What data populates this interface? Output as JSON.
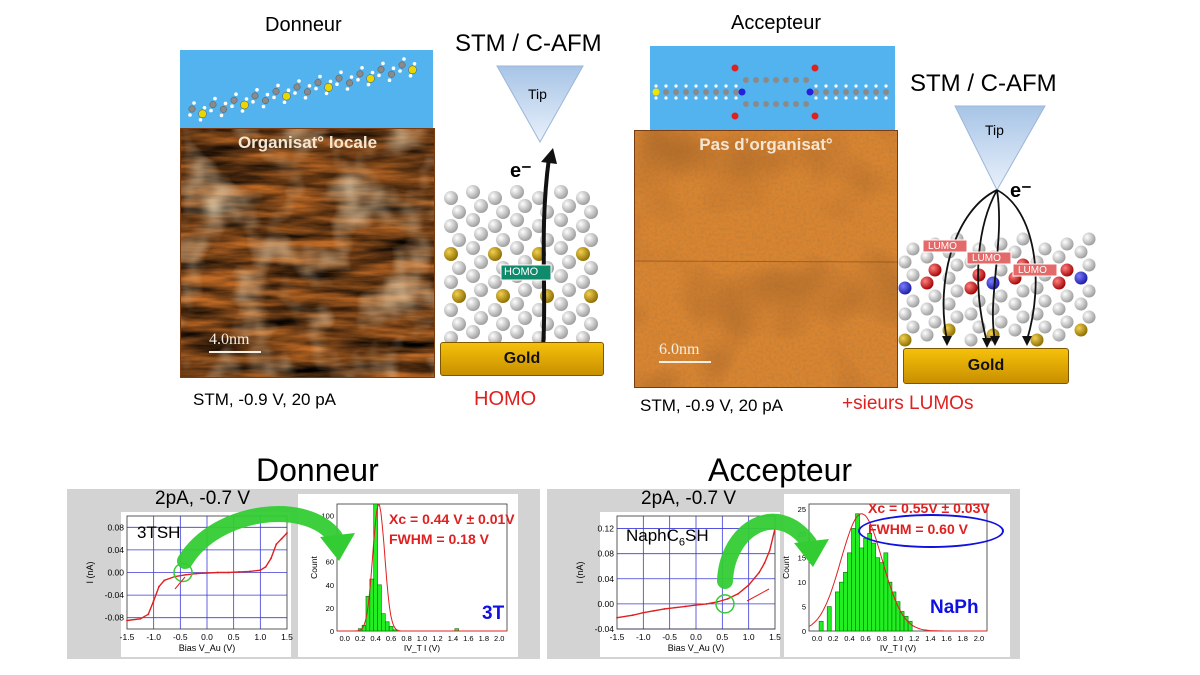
{
  "top": {
    "donor": {
      "title": "Donneur",
      "image_label": "Organisat° locale",
      "scale": "4.0nm",
      "conditions": "STM, -0.9 V, 20 pA",
      "method": "STM / C-AFM",
      "tip": "Tip",
      "electron": "e⁻",
      "orbital": "HOMO",
      "substrate": "Gold",
      "caption": "HOMO"
    },
    "acceptor": {
      "title": "Accepteur",
      "image_label": "Pas d’organisat°",
      "scale": "6.0nm",
      "conditions": "STM, -0.9 V, 20 pA",
      "method": "STM / C-AFM",
      "tip": "Tip",
      "electron": "e⁻",
      "orbital": "LUMO",
      "substrate": "Gold",
      "caption": "+sieurs LUMOs"
    }
  },
  "bottom": {
    "donor": {
      "heading": "Donneur",
      "conditions": "2pA, -0.7 V",
      "molecule": "3TSH",
      "xc": "Xc = 0.44 V ± 0.01V",
      "fwhm": "FWHM = 0.18 V",
      "tag": "3T"
    },
    "acceptor": {
      "heading": "Accepteur",
      "conditions": "2pA, -0.7 V",
      "molecule": "NaphC",
      "molecule_sub": "6",
      "molecule_suffix": "SH",
      "xc": "Xc = 0.55V ± 0.03V",
      "fwhm": "FWHM = 0.60 V",
      "tag": "NaPh"
    }
  },
  "colors": {
    "red": "#e02020",
    "blue": "#1010e0",
    "green_arrow": "#33cc33",
    "histogram": "#22ee22",
    "gold": "#e8b000",
    "sky": "#53b3ee"
  },
  "chart_data": [
    {
      "type": "line",
      "name": "donor-iv",
      "xlabel": "Bias V_Au (V)",
      "ylabel": "I (nA)",
      "xlim": [
        -1.5,
        1.5
      ],
      "ylim": [
        -0.1,
        0.1
      ],
      "xticks": [
        "-1.5",
        "-1.0",
        "-0.5",
        "0.0",
        "0.5",
        "1.0",
        "1.5"
      ],
      "yticks": [
        "0.08",
        "0.04",
        "0.00",
        "-0.04",
        "-0.08"
      ],
      "x": [
        -1.5,
        -1.25,
        -1.1,
        -1.0,
        -0.9,
        -0.8,
        -0.6,
        -0.4,
        -0.2,
        0.0,
        0.2,
        0.4,
        0.6,
        0.8,
        1.0,
        1.1,
        1.2,
        1.3,
        1.4,
        1.5
      ],
      "y": [
        -0.085,
        -0.082,
        -0.074,
        -0.05,
        -0.025,
        -0.014,
        -0.007,
        -0.004,
        -0.002,
        -0.001,
        0.0,
        0.0,
        0.001,
        0.002,
        0.004,
        0.01,
        0.025,
        0.05,
        0.06,
        0.07
      ]
    },
    {
      "type": "bar",
      "name": "donor-histogram",
      "xlabel": "IV_T I (V)",
      "ylabel": "Count",
      "xlim": [
        -0.1,
        2.1
      ],
      "ylim": [
        0,
        110
      ],
      "xticks": [
        "0.0",
        "0.2",
        "0.4",
        "0.6",
        "0.8",
        "1.0",
        "1.2",
        "1.4",
        "1.6",
        "1.8",
        "2.0"
      ],
      "yticks": [
        "0",
        "20",
        "40",
        "60",
        "80",
        "100"
      ],
      "bin_centers": [
        0.2,
        0.25,
        0.3,
        0.35,
        0.4,
        0.45,
        0.5,
        0.55,
        0.6,
        0.65,
        1.45
      ],
      "values": [
        2,
        5,
        30,
        45,
        110,
        40,
        15,
        8,
        4,
        1,
        2
      ],
      "fit_center": 0.44,
      "fit_fwhm": 0.18
    },
    {
      "type": "line",
      "name": "acceptor-iv",
      "xlabel": "Bias V_Au (V)",
      "ylabel": "I (nA)",
      "xlim": [
        -1.5,
        1.5
      ],
      "ylim": [
        -0.04,
        0.14
      ],
      "xticks": [
        "-1.5",
        "-1.0",
        "-0.5",
        "0.0",
        "0.5",
        "1.0",
        "1.5"
      ],
      "yticks": [
        "0.12",
        "0.08",
        "0.04",
        "0.00",
        "-0.04"
      ],
      "x": [
        -1.5,
        -1.2,
        -1.0,
        -0.8,
        -0.6,
        -0.4,
        -0.2,
        0.0,
        0.2,
        0.4,
        0.6,
        0.8,
        1.0,
        1.1,
        1.2,
        1.3,
        1.4,
        1.5
      ],
      "y": [
        -0.022,
        -0.018,
        -0.014,
        -0.011,
        -0.008,
        -0.006,
        -0.004,
        -0.002,
        0.0,
        0.003,
        0.008,
        0.016,
        0.03,
        0.04,
        0.05,
        0.065,
        0.085,
        0.12
      ]
    },
    {
      "type": "bar",
      "name": "acceptor-histogram",
      "xlabel": "IV_T I (V)",
      "ylabel": "Count",
      "xlim": [
        -0.1,
        2.1
      ],
      "ylim": [
        0,
        26
      ],
      "xticks": [
        "0.0",
        "0.2",
        "0.4",
        "0.6",
        "0.8",
        "1.0",
        "1.2",
        "1.4",
        "1.6",
        "1.8",
        "2.0"
      ],
      "yticks": [
        "0",
        "5",
        "10",
        "15",
        "20",
        "25"
      ],
      "bin_centers": [
        0.05,
        0.15,
        0.25,
        0.3,
        0.35,
        0.4,
        0.45,
        0.5,
        0.55,
        0.6,
        0.65,
        0.7,
        0.75,
        0.8,
        0.85,
        0.9,
        0.95,
        1.0,
        1.05,
        1.1,
        1.15
      ],
      "values": [
        2,
        5,
        8,
        10,
        12,
        16,
        21,
        24,
        17,
        19,
        20,
        18,
        15,
        14,
        16,
        10,
        8,
        6,
        4,
        3,
        2
      ],
      "fit_center": 0.55,
      "fit_fwhm": 0.6
    }
  ]
}
